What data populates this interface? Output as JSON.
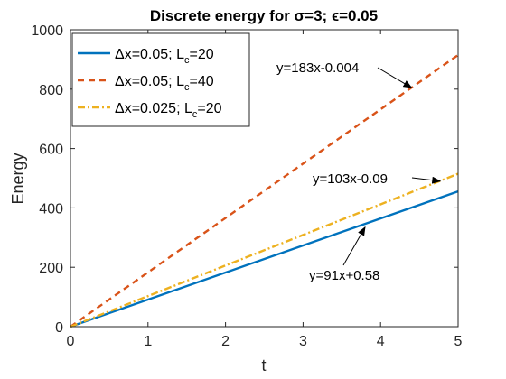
{
  "chart_data": {
    "type": "line",
    "title": "Discrete energy for σ=3; ϵ=0.05",
    "xlabel": "t",
    "ylabel": "Energy",
    "xlim": [
      0,
      5
    ],
    "ylim": [
      0,
      1000
    ],
    "xticks": [
      0,
      1,
      2,
      3,
      4,
      5
    ],
    "yticks": [
      0,
      200,
      400,
      600,
      800,
      1000
    ],
    "grid": false,
    "legend_position": "top-left",
    "series": [
      {
        "name": "Δx=0.05; L_c=20",
        "legend_main": "Δx=0.05; L",
        "legend_sub": "c",
        "legend_tail": "=20",
        "color": "#0072BD",
        "style": "solid",
        "x": [
          0,
          5
        ],
        "y": [
          0,
          455.58
        ]
      },
      {
        "name": "Δx=0.05; L_c=40",
        "legend_main": "Δx=0.05; L",
        "legend_sub": "c",
        "legend_tail": "=40",
        "color": "#D95319",
        "style": "dashed",
        "x": [
          0,
          5
        ],
        "y": [
          0,
          915
        ]
      },
      {
        "name": "Δx=0.025; L_c=20",
        "legend_main": "Δx=0.025; L",
        "legend_sub": "c",
        "legend_tail": "=20",
        "color": "#EDB120",
        "style": "dashdot",
        "x": [
          0,
          5
        ],
        "y": [
          0,
          514.91
        ]
      }
    ],
    "annotations": [
      {
        "text": "y=183x-0.004",
        "series": 1,
        "target": [
          4.4,
          805
        ]
      },
      {
        "text": "y=103x-0.09",
        "series": 2,
        "target": [
          4.77,
          490
        ]
      },
      {
        "text": "y=91x+0.58",
        "series": 0,
        "target": [
          3.8,
          335
        ]
      }
    ]
  }
}
